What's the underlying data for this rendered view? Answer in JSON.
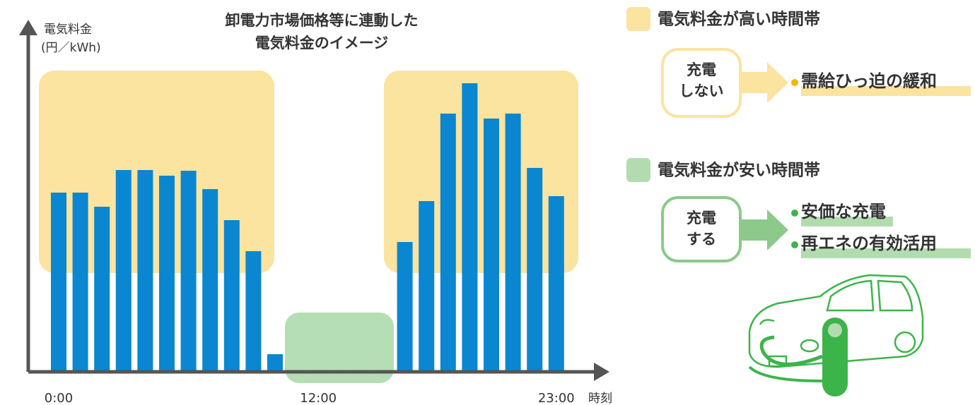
{
  "chart_data": {
    "type": "bar",
    "title": [
      "卸電力市場価格等に連動した",
      "電気料金のイメージ"
    ],
    "y_label": [
      "電気料金",
      "(円／kWh)"
    ],
    "x_label": "時刻",
    "categories": [
      "0:00",
      null,
      null,
      null,
      null,
      null,
      null,
      null,
      null,
      null,
      null,
      null,
      "12:00",
      null,
      null,
      null,
      null,
      null,
      null,
      null,
      null,
      null,
      null,
      "23:00"
    ],
    "values": [
      254,
      254,
      234,
      286,
      286,
      278,
      285,
      259,
      215,
      171,
      25,
      3,
      3,
      3,
      3,
      3,
      184,
      242,
      366,
      409,
      359,
      366,
      289,
      249
    ],
    "color": "#0a87d0",
    "ylim": [
      0,
      492
    ]
  },
  "side": {
    "high": {
      "legend": "電気料金が高い時間帯",
      "action": [
        "充電",
        "しない"
      ],
      "effects": [
        "需給ひっ迫の緩和"
      ]
    },
    "low": {
      "legend": "電気料金が安い時間帯",
      "action": [
        "充電",
        "する"
      ],
      "effects": [
        "安価な充電",
        "再エネの有効活用"
      ]
    }
  }
}
